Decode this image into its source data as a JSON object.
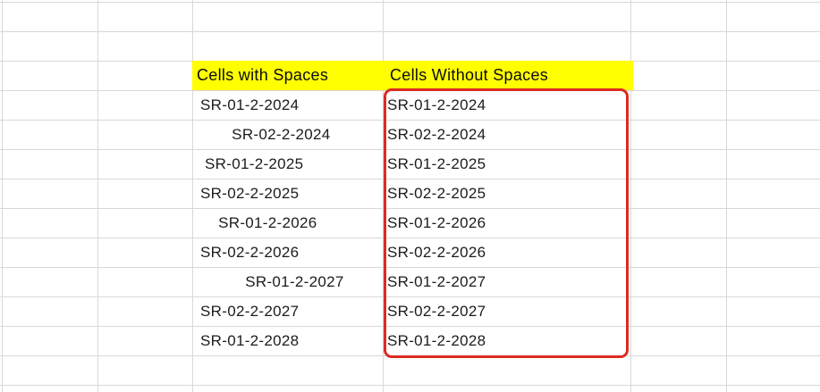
{
  "sheet": {
    "headers": {
      "with_spaces": "Cells with Spaces",
      "without_spaces": "Cells Without Spaces"
    },
    "rows": [
      {
        "with_spaces": " SR-01-2-2024",
        "without_spaces": "SR-01-2-2024"
      },
      {
        "with_spaces": "        SR-02-2-2024",
        "without_spaces": "SR-02-2-2024"
      },
      {
        "with_spaces": "  SR-01-2-2025",
        "without_spaces": "SR-01-2-2025"
      },
      {
        "with_spaces": " SR-02-2-2025",
        "without_spaces": "SR-02-2-2025"
      },
      {
        "with_spaces": "     SR-01-2-2026",
        "without_spaces": "SR-01-2-2026"
      },
      {
        "with_spaces": " SR-02-2-2026",
        "without_spaces": "SR-02-2-2026"
      },
      {
        "with_spaces": "           SR-01-2-2027",
        "without_spaces": "SR-01-2-2027"
      },
      {
        "with_spaces": " SR-02-2-2027",
        "without_spaces": "SR-02-2-2027"
      },
      {
        "with_spaces": " SR-01-2-2028",
        "without_spaces": "SR-01-2-2028"
      }
    ],
    "colors": {
      "header_fill": "#ffff00",
      "highlight_border": "#dc2b20",
      "gridline": "#d8d8d8",
      "text": "#1c1c1c"
    }
  }
}
